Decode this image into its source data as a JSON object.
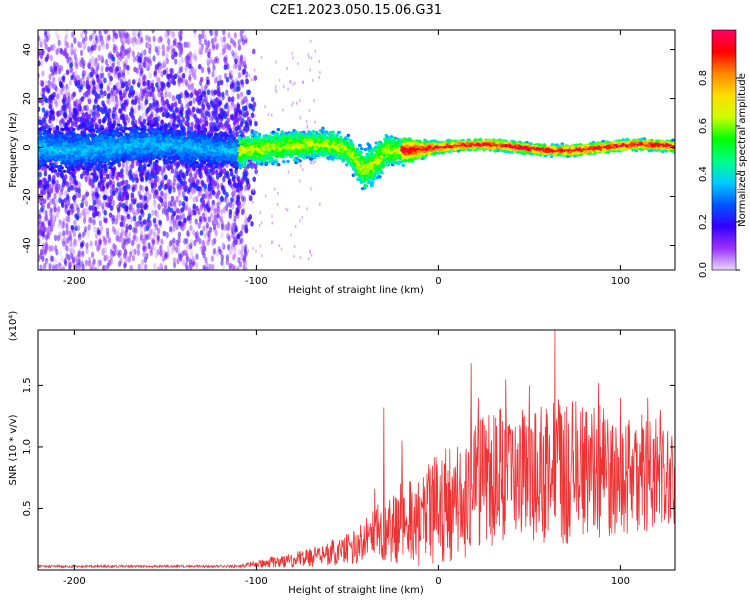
{
  "title": "C2E1.2023.050.15.06.G31",
  "chart_data": [
    {
      "type": "heatmap",
      "xlabel": "Height of straight line (km)",
      "ylabel": "Frequency (Hz)",
      "xlim": [
        -220,
        130
      ],
      "ylim": [
        -50,
        48
      ],
      "x_ticks": [
        -200,
        -100,
        0,
        100
      ],
      "x_tick_labels": [
        "-200",
        "-100",
        "0",
        "100"
      ],
      "y_ticks": [
        -40,
        -20,
        0,
        20,
        40
      ],
      "y_tick_labels": [
        "-40",
        "-20",
        "0",
        "20",
        "40"
      ],
      "grid": false,
      "colorbar": {
        "label": "Normalized spectral amplitude",
        "range": [
          0,
          1
        ],
        "ticks": [
          0.0,
          0.2,
          0.4,
          0.6,
          0.8
        ],
        "tick_labels": [
          "0.0",
          "0.2",
          "0.4",
          "0.6",
          "0.8"
        ],
        "colormap": [
          "#e8d8ff",
          "#9b30ff",
          "#3300ff",
          "#0055ff",
          "#00ccff",
          "#00ff88",
          "#00ff00",
          "#ccff00",
          "#ffdd00",
          "#ff8800",
          "#ff0000",
          "#ff0066"
        ]
      },
      "description_of_field": {
        "core_band_center_hz": 0,
        "core_band_halfwidth_hz_at": [
          [
            -220,
            8
          ],
          [
            -100,
            6
          ],
          [
            -50,
            5
          ],
          [
            -40,
            8
          ],
          [
            0,
            2
          ],
          [
            130,
            2
          ]
        ],
        "scatter_region_x": [
          -220,
          -105
        ],
        "scatter_region_y": [
          -50,
          48
        ],
        "dip_feature": {
          "x": -40,
          "y": -12
        }
      }
    },
    {
      "type": "line",
      "xlabel": "Height of straight line (km)",
      "ylabel": "SNR (10 * v/v)",
      "yscale_multiplier_label": "(x10⁴)",
      "xlim": [
        -220,
        130
      ],
      "ylim": [
        0,
        1.95
      ],
      "x_ticks": [
        -200,
        -100,
        0,
        100
      ],
      "x_tick_labels": [
        "-200",
        "-100",
        "0",
        "100"
      ],
      "y_ticks": [
        0.5,
        1.0,
        1.5
      ],
      "y_tick_labels": [
        "0.5",
        "1.0",
        "1.5"
      ],
      "grid": false,
      "series": [
        {
          "color": "#ee3333",
          "envelope": {
            "x": [
              -220,
              -110,
              -100,
              -80,
              -60,
              -45,
              -35,
              -28,
              -20,
              -10,
              0,
              10,
              20,
              30,
              40,
              50,
              60,
              70,
              80,
              90,
              100,
              110,
              120,
              130
            ],
            "median": [
              0.03,
              0.03,
              0.05,
              0.08,
              0.13,
              0.2,
              0.3,
              0.35,
              0.4,
              0.42,
              0.5,
              0.55,
              0.65,
              0.75,
              0.78,
              0.8,
              0.8,
              0.8,
              0.8,
              0.8,
              0.78,
              0.8,
              0.78,
              0.8
            ],
            "spread": [
              0.01,
              0.01,
              0.03,
              0.06,
              0.1,
              0.15,
              0.2,
              0.3,
              0.35,
              0.4,
              0.45,
              0.5,
              0.55,
              0.55,
              0.55,
              0.55,
              0.6,
              0.6,
              0.55,
              0.55,
              0.5,
              0.5,
              0.45,
              0.45
            ],
            "peaks": [
              [
                -35,
                0.66
              ],
              [
                -30,
                1.32
              ],
              [
                -20,
                1.05
              ],
              [
                18,
                1.68
              ],
              [
                22,
                1.4
              ],
              [
                37,
                1.55
              ],
              [
                50,
                1.5
              ],
              [
                64,
                1.95
              ],
              [
                88,
                1.52
              ],
              [
                100,
                1.4
              ],
              [
                115,
                1.4
              ],
              [
                122,
                1.3
              ]
            ]
          }
        }
      ]
    }
  ]
}
